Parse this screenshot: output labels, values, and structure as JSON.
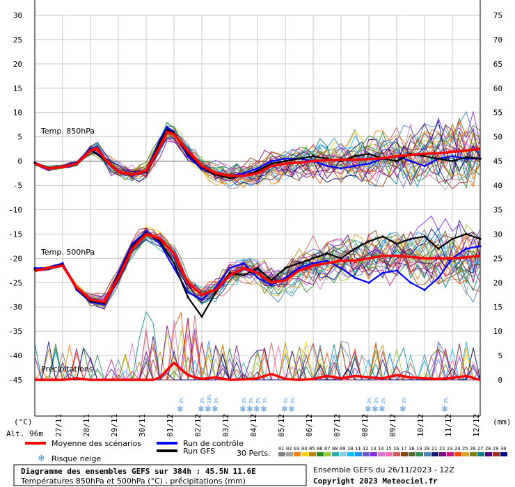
{
  "chart_data": {
    "type": "line",
    "title": "Diagramme des ensembles GEFS sur 384h : 45.5N 11.6E",
    "subtitle": "Températures 850hPa et 500hPa (°C) , précipitations (mm)",
    "left_unit": "(°C)",
    "right_unit": "(mm)",
    "altitude": "Alt. 96m",
    "left_ticks": [
      30,
      25,
      20,
      15,
      10,
      5,
      0,
      -5,
      -10,
      -15,
      -20,
      -25,
      -30,
      -35,
      -40,
      -45
    ],
    "right_ticks": [
      75,
      70,
      65,
      60,
      55,
      50,
      45,
      40,
      35,
      30,
      25,
      20,
      15,
      10,
      5,
      0
    ],
    "ylim": [
      -45,
      30
    ],
    "y2lim": [
      0,
      75
    ],
    "x_start_day": "26/11",
    "x_days_range": [
      0,
      16
    ],
    "date_labels": [
      "27/11",
      "28/11",
      "29/11",
      "30/11",
      "01/12",
      "02/12",
      "03/12",
      "04/12",
      "05/12",
      "06/12",
      "07/12",
      "08/12",
      "09/12",
      "10/12",
      "11/12",
      "12/12"
    ],
    "panel_labels": {
      "t850": "Temp. 850hPa",
      "t500": "Temp. 500hPa",
      "precip": "Précipitations"
    },
    "legend": {
      "mean": "Moyenne des scénarios",
      "control": "Run de contrôle",
      "gfs": "Run GFS",
      "snow": "Risque neige",
      "perts": "30 Perts."
    },
    "series": [
      {
        "name": "Moyenne des scénarios",
        "panel": "t850",
        "color": "#ff0000",
        "days": [
          0,
          0.5,
          1,
          1.5,
          2,
          2.25,
          2.5,
          3,
          3.5,
          4,
          4.5,
          4.75,
          5,
          5.5,
          6,
          6.5,
          7,
          7.5,
          8,
          8.5,
          9,
          9.5,
          10,
          10.5,
          11,
          11.5,
          12,
          12.5,
          13,
          13.5,
          14,
          14.5,
          15,
          15.5,
          16
        ],
        "values": [
          -0.5,
          -1.5,
          -1.2,
          -0.5,
          2.2,
          2.5,
          0.5,
          -2.2,
          -2.8,
          -2.0,
          3.0,
          6.0,
          5.5,
          2.0,
          -1.0,
          -2.5,
          -3.0,
          -3.0,
          -2.5,
          -1.0,
          -0.5,
          -0.3,
          0.0,
          0.2,
          0.3,
          0.3,
          0.4,
          0.6,
          1.0,
          1.3,
          1.5,
          1.6,
          1.9,
          2.2,
          2.5
        ]
      },
      {
        "name": "Moyenne des scénarios",
        "panel": "t500",
        "color": "#ff0000",
        "days": [
          0,
          0.5,
          1,
          1.5,
          2,
          2.5,
          3,
          3.5,
          4,
          4.5,
          5,
          5.5,
          6,
          6.5,
          7,
          7.5,
          8,
          8.5,
          9,
          9.5,
          10,
          10.5,
          11,
          11.5,
          12,
          12.5,
          13,
          13.5,
          14,
          14.5,
          15,
          15.5,
          16
        ],
        "values": [
          -22.5,
          -22.0,
          -21.5,
          -26.0,
          -28.5,
          -29.0,
          -24.0,
          -18.0,
          -15.0,
          -16.0,
          -19.0,
          -25.0,
          -27.5,
          -26.5,
          -23.5,
          -22.0,
          -23.0,
          -25.0,
          -24.5,
          -22.5,
          -21.5,
          -21.0,
          -20.5,
          -20.5,
          -20.0,
          -19.5,
          -19.5,
          -19.7,
          -20.0,
          -20.0,
          -20.0,
          -19.8,
          -19.5
        ]
      },
      {
        "name": "Moyenne des scénarios",
        "panel": "precip",
        "color": "#ff0000",
        "days": [
          0,
          0.5,
          1,
          1.5,
          2,
          2.5,
          3,
          3.5,
          4,
          4.25,
          4.5,
          4.75,
          5,
          5.25,
          5.5,
          5.75,
          6,
          6.5,
          7,
          7.5,
          8,
          8.25,
          8.5,
          8.75,
          9,
          9.5,
          10,
          10.5,
          11,
          11.5,
          12,
          12.5,
          13,
          13.5,
          14,
          14.5,
          15,
          15.5,
          16
        ],
        "values": [
          0,
          0,
          0,
          0.3,
          0,
          0,
          0,
          0,
          0,
          0,
          0.5,
          2.0,
          3.5,
          2.2,
          1.0,
          0.5,
          0.2,
          0.5,
          0,
          0.1,
          0.3,
          0.8,
          1.2,
          0.7,
          0.2,
          0,
          0.2,
          0.8,
          0.3,
          0.8,
          0.5,
          0.3,
          1.0,
          0.5,
          0.3,
          0.2,
          0.4,
          0.8,
          0
        ]
      },
      {
        "name": "Run de contrôle",
        "panel": "t850",
        "color": "#0000ff",
        "days": [
          0,
          0.5,
          1,
          1.5,
          2,
          2.5,
          3,
          3.5,
          4,
          4.5,
          4.75,
          5,
          5.5,
          6,
          6.5,
          7,
          7.5,
          8,
          8.5,
          9,
          9.5,
          10,
          10.5,
          11,
          11.5,
          12,
          12.5,
          13,
          13.5,
          14,
          14.5,
          15,
          15.5,
          16
        ],
        "values": [
          -0.3,
          -1.5,
          -1.0,
          -0.3,
          2.5,
          0.5,
          -2.0,
          -3.0,
          -2.0,
          4.5,
          7.0,
          6.0,
          1.0,
          -1.5,
          -2.5,
          -3.0,
          -2.5,
          -1.5,
          0.0,
          0.5,
          0.5,
          0.0,
          -1.0,
          -1.5,
          -1.0,
          -0.5,
          0.5,
          1.0,
          0.0,
          -1.0,
          0.5,
          1.0,
          0.5,
          0.5
        ]
      },
      {
        "name": "Run de contrôle",
        "panel": "t500",
        "color": "#0000ff",
        "days": [
          0,
          0.5,
          1,
          1.5,
          2,
          2.5,
          3,
          3.5,
          4,
          4.5,
          5,
          5.5,
          6,
          6.5,
          7,
          7.5,
          8,
          8.5,
          9,
          9.5,
          10,
          10.5,
          11,
          11.5,
          12,
          12.5,
          13,
          13.5,
          14,
          14.5,
          15,
          15.5,
          16
        ],
        "values": [
          -22.0,
          -22.0,
          -21.0,
          -26.5,
          -29.0,
          -29.5,
          -23.0,
          -17.0,
          -14.5,
          -17.0,
          -22.0,
          -27.0,
          -28.5,
          -26.0,
          -22.0,
          -21.0,
          -24.0,
          -25.5,
          -24.0,
          -22.0,
          -21.0,
          -20.5,
          -22.0,
          -24.0,
          -25.0,
          -23.0,
          -22.5,
          -25.0,
          -26.5,
          -24.0,
          -20.0,
          -18.0,
          -17.5
        ]
      },
      {
        "name": "Run GFS",
        "panel": "t850",
        "color": "#000000",
        "days": [
          0,
          0.5,
          1,
          1.5,
          2,
          2.5,
          3,
          3.5,
          4,
          4.5,
          4.75,
          5,
          5.5,
          6,
          6.5,
          7,
          7.5,
          8,
          8.5,
          9,
          9.5,
          10,
          10.5,
          11,
          11.5,
          12,
          12.5,
          13,
          13.5,
          14,
          14.5,
          15,
          15.5,
          16
        ],
        "values": [
          -0.4,
          -1.4,
          -1.1,
          -0.4,
          2.3,
          0.3,
          -2.3,
          -2.9,
          -2.2,
          4.0,
          6.5,
          5.8,
          1.5,
          -1.2,
          -2.8,
          -3.5,
          -3.0,
          -2.0,
          -0.5,
          0.0,
          0.5,
          1.0,
          0.5,
          0.0,
          1.0,
          1.5,
          0.5,
          0.0,
          1.5,
          1.0,
          0.5,
          0.0,
          0.8,
          0.5
        ]
      },
      {
        "name": "Run GFS",
        "panel": "t500",
        "color": "#000000",
        "days": [
          0,
          0.5,
          1,
          1.5,
          2,
          2.5,
          3,
          3.5,
          4,
          4.5,
          5,
          5.5,
          6,
          6.5,
          7,
          7.5,
          8,
          8.5,
          9,
          9.5,
          10,
          10.5,
          11,
          11.5,
          12,
          12.5,
          13,
          13.5,
          14,
          14.5,
          15,
          15.5,
          16
        ],
        "values": [
          -22.3,
          -22.0,
          -21.3,
          -26.2,
          -28.8,
          -29.2,
          -23.5,
          -17.5,
          -14.8,
          -16.5,
          -21.0,
          -28.0,
          -32.0,
          -27.0,
          -23.0,
          -23.5,
          -22.0,
          -24.5,
          -22.0,
          -21.0,
          -20.0,
          -19.0,
          -20.0,
          -18.0,
          -16.5,
          -15.5,
          -17.0,
          -16.0,
          -15.5,
          -18.0,
          -16.0,
          -15.0,
          -16.0
        ]
      }
    ],
    "perturbations": {
      "count": 30,
      "labels": [
        "01",
        "02",
        "03",
        "04",
        "05",
        "06",
        "07",
        "08",
        "09",
        "10",
        "11",
        "12",
        "13",
        "14",
        "15",
        "16",
        "17",
        "18",
        "19",
        "20",
        "21",
        "22",
        "23",
        "24",
        "25",
        "26",
        "27",
        "28",
        "29",
        "30"
      ],
      "colors": [
        "#7f7f7f",
        "#a0a0a0",
        "#ff7f00",
        "#ffd400",
        "#b8860b",
        "#228b22",
        "#9acd32",
        "#20b2aa",
        "#87ceeb",
        "#00bfff",
        "#1e90ff",
        "#6a5acd",
        "#8a2be2",
        "#da70d6",
        "#ff69b4",
        "#cd5c5c",
        "#8b4513",
        "#556b2f",
        "#2e8b57",
        "#4682b4",
        "#191970",
        "#800080",
        "#c71585",
        "#ff4500",
        "#daa520",
        "#808000",
        "#008080",
        "#4b0082",
        "#a52a2a",
        "#000080"
      ]
    },
    "snow_risk": [
      {
        "day": 5.25,
        "pct": "3%"
      },
      {
        "day": 6.0,
        "pct": "3%"
      },
      {
        "day": 6.25,
        "pct": "10%"
      },
      {
        "day": 6.5,
        "pct": "3%"
      },
      {
        "day": 7.5,
        "pct": "3%"
      },
      {
        "day": 7.75,
        "pct": "3%"
      },
      {
        "day": 8.0,
        "pct": "3%"
      },
      {
        "day": 8.25,
        "pct": "3%"
      },
      {
        "day": 9.0,
        "pct": "3%"
      },
      {
        "day": 9.25,
        "pct": "3%"
      },
      {
        "day": 12.0,
        "pct": "3%"
      },
      {
        "day": 12.25,
        "pct": "3%"
      },
      {
        "day": 12.5,
        "pct": "3%"
      },
      {
        "day": 13.25,
        "pct": "3%"
      },
      {
        "day": 14.75,
        "pct": "3%"
      }
    ],
    "grid": true,
    "legend_placement": "bottom"
  },
  "footer": {
    "run_info": "Ensemble GEFS du 26/11/2023 - 12Z",
    "copyright": "Copyright 2023 Meteociel.fr"
  }
}
